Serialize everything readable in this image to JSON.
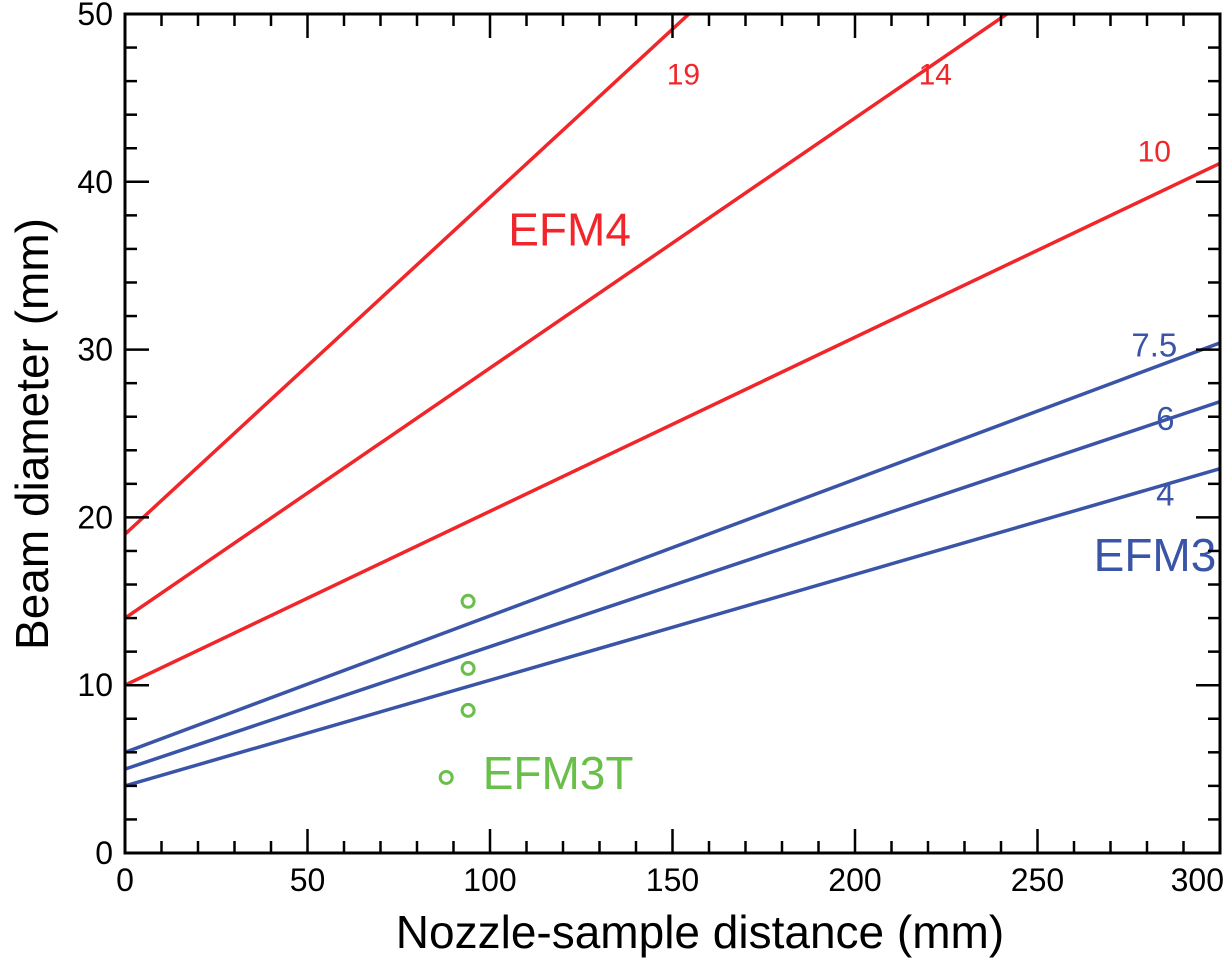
{
  "chart_data": {
    "type": "line",
    "title": "",
    "xlabel": "Nozzle-sample distance (mm)",
    "ylabel": "Beam diameter (mm)",
    "xlim": [
      0,
      300
    ],
    "ylim": [
      0,
      50
    ],
    "xticks": [
      "0",
      "50",
      "100",
      "150",
      "200",
      "250",
      "300"
    ],
    "yticks": [
      "0",
      "10",
      "20",
      "30",
      "40",
      "50"
    ],
    "grid": false,
    "colors": {
      "EFM4": "#f0262a",
      "EFM3": "#3a55a8",
      "EFM3T": "#6abf4b"
    },
    "series": [
      {
        "label": "19",
        "group": "EFM4",
        "x": [
          0,
          300
        ],
        "y": [
          19,
          79.2
        ]
      },
      {
        "label": "14",
        "group": "EFM4",
        "x": [
          0,
          300
        ],
        "y": [
          14,
          58.7
        ]
      },
      {
        "label": "10",
        "group": "EFM4",
        "x": [
          0,
          300
        ],
        "y": [
          10,
          41.1
        ]
      },
      {
        "label": "7.5",
        "group": "EFM3",
        "x": [
          0,
          300
        ],
        "y": [
          6,
          30.4
        ]
      },
      {
        "label": "6",
        "group": "EFM3",
        "x": [
          0,
          300
        ],
        "y": [
          5,
          26.9
        ]
      },
      {
        "label": "4",
        "group": "EFM3",
        "x": [
          0,
          300
        ],
        "y": [
          4,
          22.9
        ]
      }
    ],
    "scatter": {
      "group": "EFM3T",
      "points": [
        [
          94,
          15
        ],
        [
          94,
          11
        ],
        [
          94,
          8.5
        ],
        [
          88,
          4.5
        ]
      ]
    },
    "group_labels": [
      "EFM4",
      "EFM3",
      "EFM3T"
    ]
  }
}
